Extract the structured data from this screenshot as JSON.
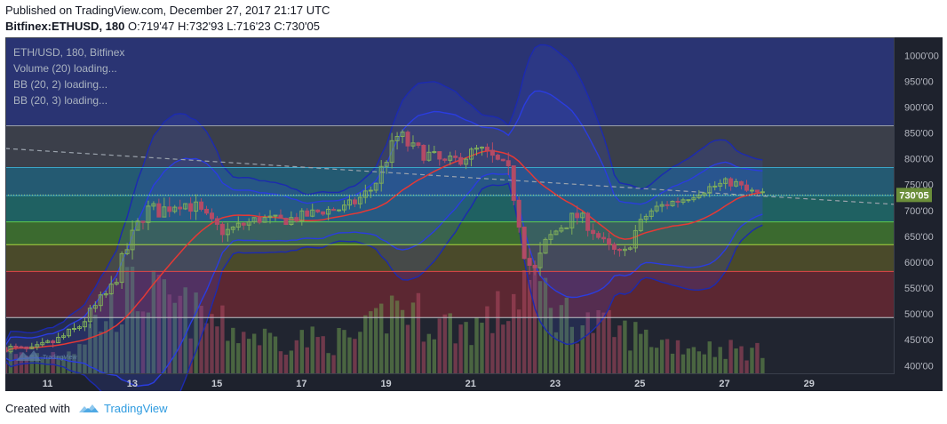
{
  "header": {
    "published": "Published on TradingView.com, December 27, 2017 21:17 UTC",
    "symbol": "Bitfinex:ETHUSD, 180",
    "ohlc": "O:719'47 H:732'93 L:716'23 C:730'05"
  },
  "legend": {
    "title": "ETH/USD, 180, Bitfinex",
    "lines": [
      "Volume (20) loading...",
      "BB (20, 2) loading...",
      "BB (20, 3) loading..."
    ]
  },
  "footer": {
    "created_with": "Created with",
    "brand": "TradingView",
    "watermark": "TradingView"
  },
  "colors": {
    "background": "#1e222d",
    "bull": "#6e9a50",
    "bear": "#b04a63",
    "ma": "#e53935",
    "bb2": "#2a3ce0",
    "bb3": "#1c2ab0",
    "price_label": "#6b8e3a"
  },
  "chart_data": {
    "type": "candlestick",
    "symbol": "ETH/USD",
    "interval": "180",
    "exchange": "Bitfinex",
    "last_price": 730.05,
    "last_price_label": "730'05",
    "ylim": [
      385,
      1035
    ],
    "xlim": [
      10.0,
      31.0
    ],
    "y_ticks": [
      {
        "value": 1000,
        "label": "1000'00"
      },
      {
        "value": 950,
        "label": "950'00"
      },
      {
        "value": 900,
        "label": "900'00"
      },
      {
        "value": 850,
        "label": "850'00"
      },
      {
        "value": 800,
        "label": "800'00"
      },
      {
        "value": 750,
        "label": "750'00"
      },
      {
        "value": 700,
        "label": "700'00"
      },
      {
        "value": 650,
        "label": "650'00"
      },
      {
        "value": 600,
        "label": "600'00"
      },
      {
        "value": 550,
        "label": "550'00"
      },
      {
        "value": 500,
        "label": "500'00"
      },
      {
        "value": 450,
        "label": "450'00"
      },
      {
        "value": 400,
        "label": "400'00"
      }
    ],
    "x_ticks": [
      {
        "value": 11,
        "label": "11"
      },
      {
        "value": 13,
        "label": "13"
      },
      {
        "value": 15,
        "label": "15"
      },
      {
        "value": 17,
        "label": "17"
      },
      {
        "value": 19,
        "label": "19"
      },
      {
        "value": 21,
        "label": "21"
      },
      {
        "value": 23,
        "label": "23"
      },
      {
        "value": 25,
        "label": "25"
      },
      {
        "value": 27,
        "label": "27"
      },
      {
        "value": 29,
        "label": "29"
      }
    ],
    "zones": [
      {
        "from": 864,
        "to": 1035,
        "color": "#2a3473"
      },
      {
        "from": 783,
        "to": 864,
        "color": "#3b3f4a"
      },
      {
        "from": 729,
        "to": 783,
        "color": "#245a72"
      },
      {
        "from": 678,
        "to": 729,
        "color": "#1f6162"
      },
      {
        "from": 634,
        "to": 678,
        "color": "#3b6a2f"
      },
      {
        "from": 582,
        "to": 634,
        "color": "#4a4a2a"
      },
      {
        "from": 493,
        "to": 582,
        "color": "#5c2732"
      },
      {
        "from": 385,
        "to": 493,
        "color": "#212530"
      }
    ],
    "levels": [
      {
        "value": 864,
        "color": "#9aa0a8"
      },
      {
        "value": 783,
        "color": "#3aa6c8"
      },
      {
        "value": 729,
        "color": "#3aa6c8"
      },
      {
        "value": 678,
        "color": "#5fcc4e"
      },
      {
        "value": 634,
        "color": "#a8d840"
      },
      {
        "value": 582,
        "color": "#e04848"
      },
      {
        "value": 493,
        "color": "#bfc3c9"
      }
    ],
    "trendline": {
      "x": [
        10.0,
        31.0
      ],
      "y": [
        820,
        712
      ]
    },
    "anchors": [
      [
        10.0,
        435,
        40
      ],
      [
        10.6,
        428,
        45
      ],
      [
        11.2,
        448,
        50
      ],
      [
        11.7,
        472,
        70
      ],
      [
        12.1,
        510,
        120
      ],
      [
        12.5,
        548,
        150
      ],
      [
        12.9,
        630,
        190
      ],
      [
        13.3,
        700,
        200
      ],
      [
        13.7,
        700,
        170
      ],
      [
        14.1,
        718,
        160
      ],
      [
        14.5,
        706,
        140
      ],
      [
        14.9,
        672,
        130
      ],
      [
        15.2,
        658,
        110
      ],
      [
        15.6,
        672,
        100
      ],
      [
        16.0,
        684,
        90
      ],
      [
        16.5,
        680,
        80
      ],
      [
        17.0,
        688,
        85
      ],
      [
        17.5,
        700,
        80
      ],
      [
        18.0,
        704,
        80
      ],
      [
        18.3,
        718,
        85
      ],
      [
        18.7,
        745,
        110
      ],
      [
        19.0,
        800,
        150
      ],
      [
        19.3,
        848,
        170
      ],
      [
        19.6,
        820,
        150
      ],
      [
        20.0,
        808,
        130
      ],
      [
        20.4,
        790,
        120
      ],
      [
        20.8,
        802,
        110
      ],
      [
        21.2,
        818,
        120
      ],
      [
        21.6,
        796,
        140
      ],
      [
        21.9,
        772,
        160
      ],
      [
        22.1,
        700,
        200
      ],
      [
        22.3,
        610,
        230
      ],
      [
        22.5,
        578,
        220
      ],
      [
        22.8,
        640,
        190
      ],
      [
        23.1,
        668,
        150
      ],
      [
        23.5,
        690,
        130
      ],
      [
        23.8,
        672,
        120
      ],
      [
        24.2,
        630,
        110
      ],
      [
        24.6,
        610,
        100
      ],
      [
        24.9,
        660,
        95
      ],
      [
        25.2,
        696,
        85
      ],
      [
        25.6,
        712,
        75
      ],
      [
        26.0,
        722,
        70
      ],
      [
        26.4,
        738,
        65
      ],
      [
        26.8,
        748,
        60
      ],
      [
        27.2,
        756,
        60
      ],
      [
        27.5,
        738,
        55
      ],
      [
        27.9,
        730,
        50
      ]
    ]
  }
}
